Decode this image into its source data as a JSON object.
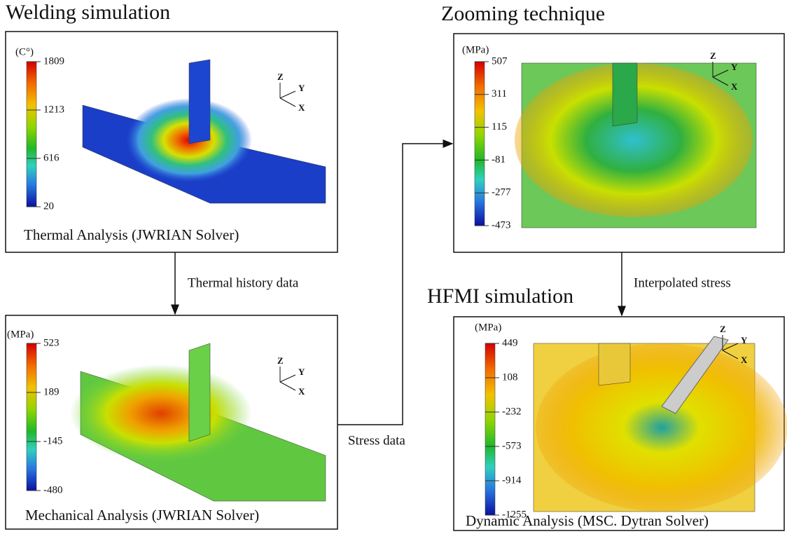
{
  "titles": [
    "Welding simulation",
    "Zooming technique",
    "HFMI simulation"
  ],
  "panels": [
    {
      "unit": "(C°)",
      "scale": [
        1809,
        1213,
        616,
        20
      ],
      "axes": [
        "Z",
        "Y",
        "X"
      ],
      "caption": "Thermal Analysis (JWRIAN Solver)"
    },
    {
      "unit": "(MPa)",
      "scale": [
        523,
        189,
        -145,
        -480
      ],
      "axes": [
        "Z",
        "Y",
        "X"
      ],
      "caption": "Mechanical Analysis (JWRIAN Solver)"
    },
    {
      "unit": "(MPa)",
      "scale": [
        507,
        311,
        115,
        -81,
        -277,
        -473
      ],
      "axes": [
        "Z",
        "Y",
        "X"
      ]
    },
    {
      "unit": "(MPa)",
      "scale": [
        449,
        108,
        -232,
        -573,
        -914,
        -1255
      ],
      "axes": [
        "Z",
        "Y",
        "X"
      ],
      "caption": "Dynamic Analysis (MSC. Dytran Solver)"
    }
  ],
  "flows": [
    "Thermal history data",
    "Stress data",
    "Interpolated stress"
  ]
}
